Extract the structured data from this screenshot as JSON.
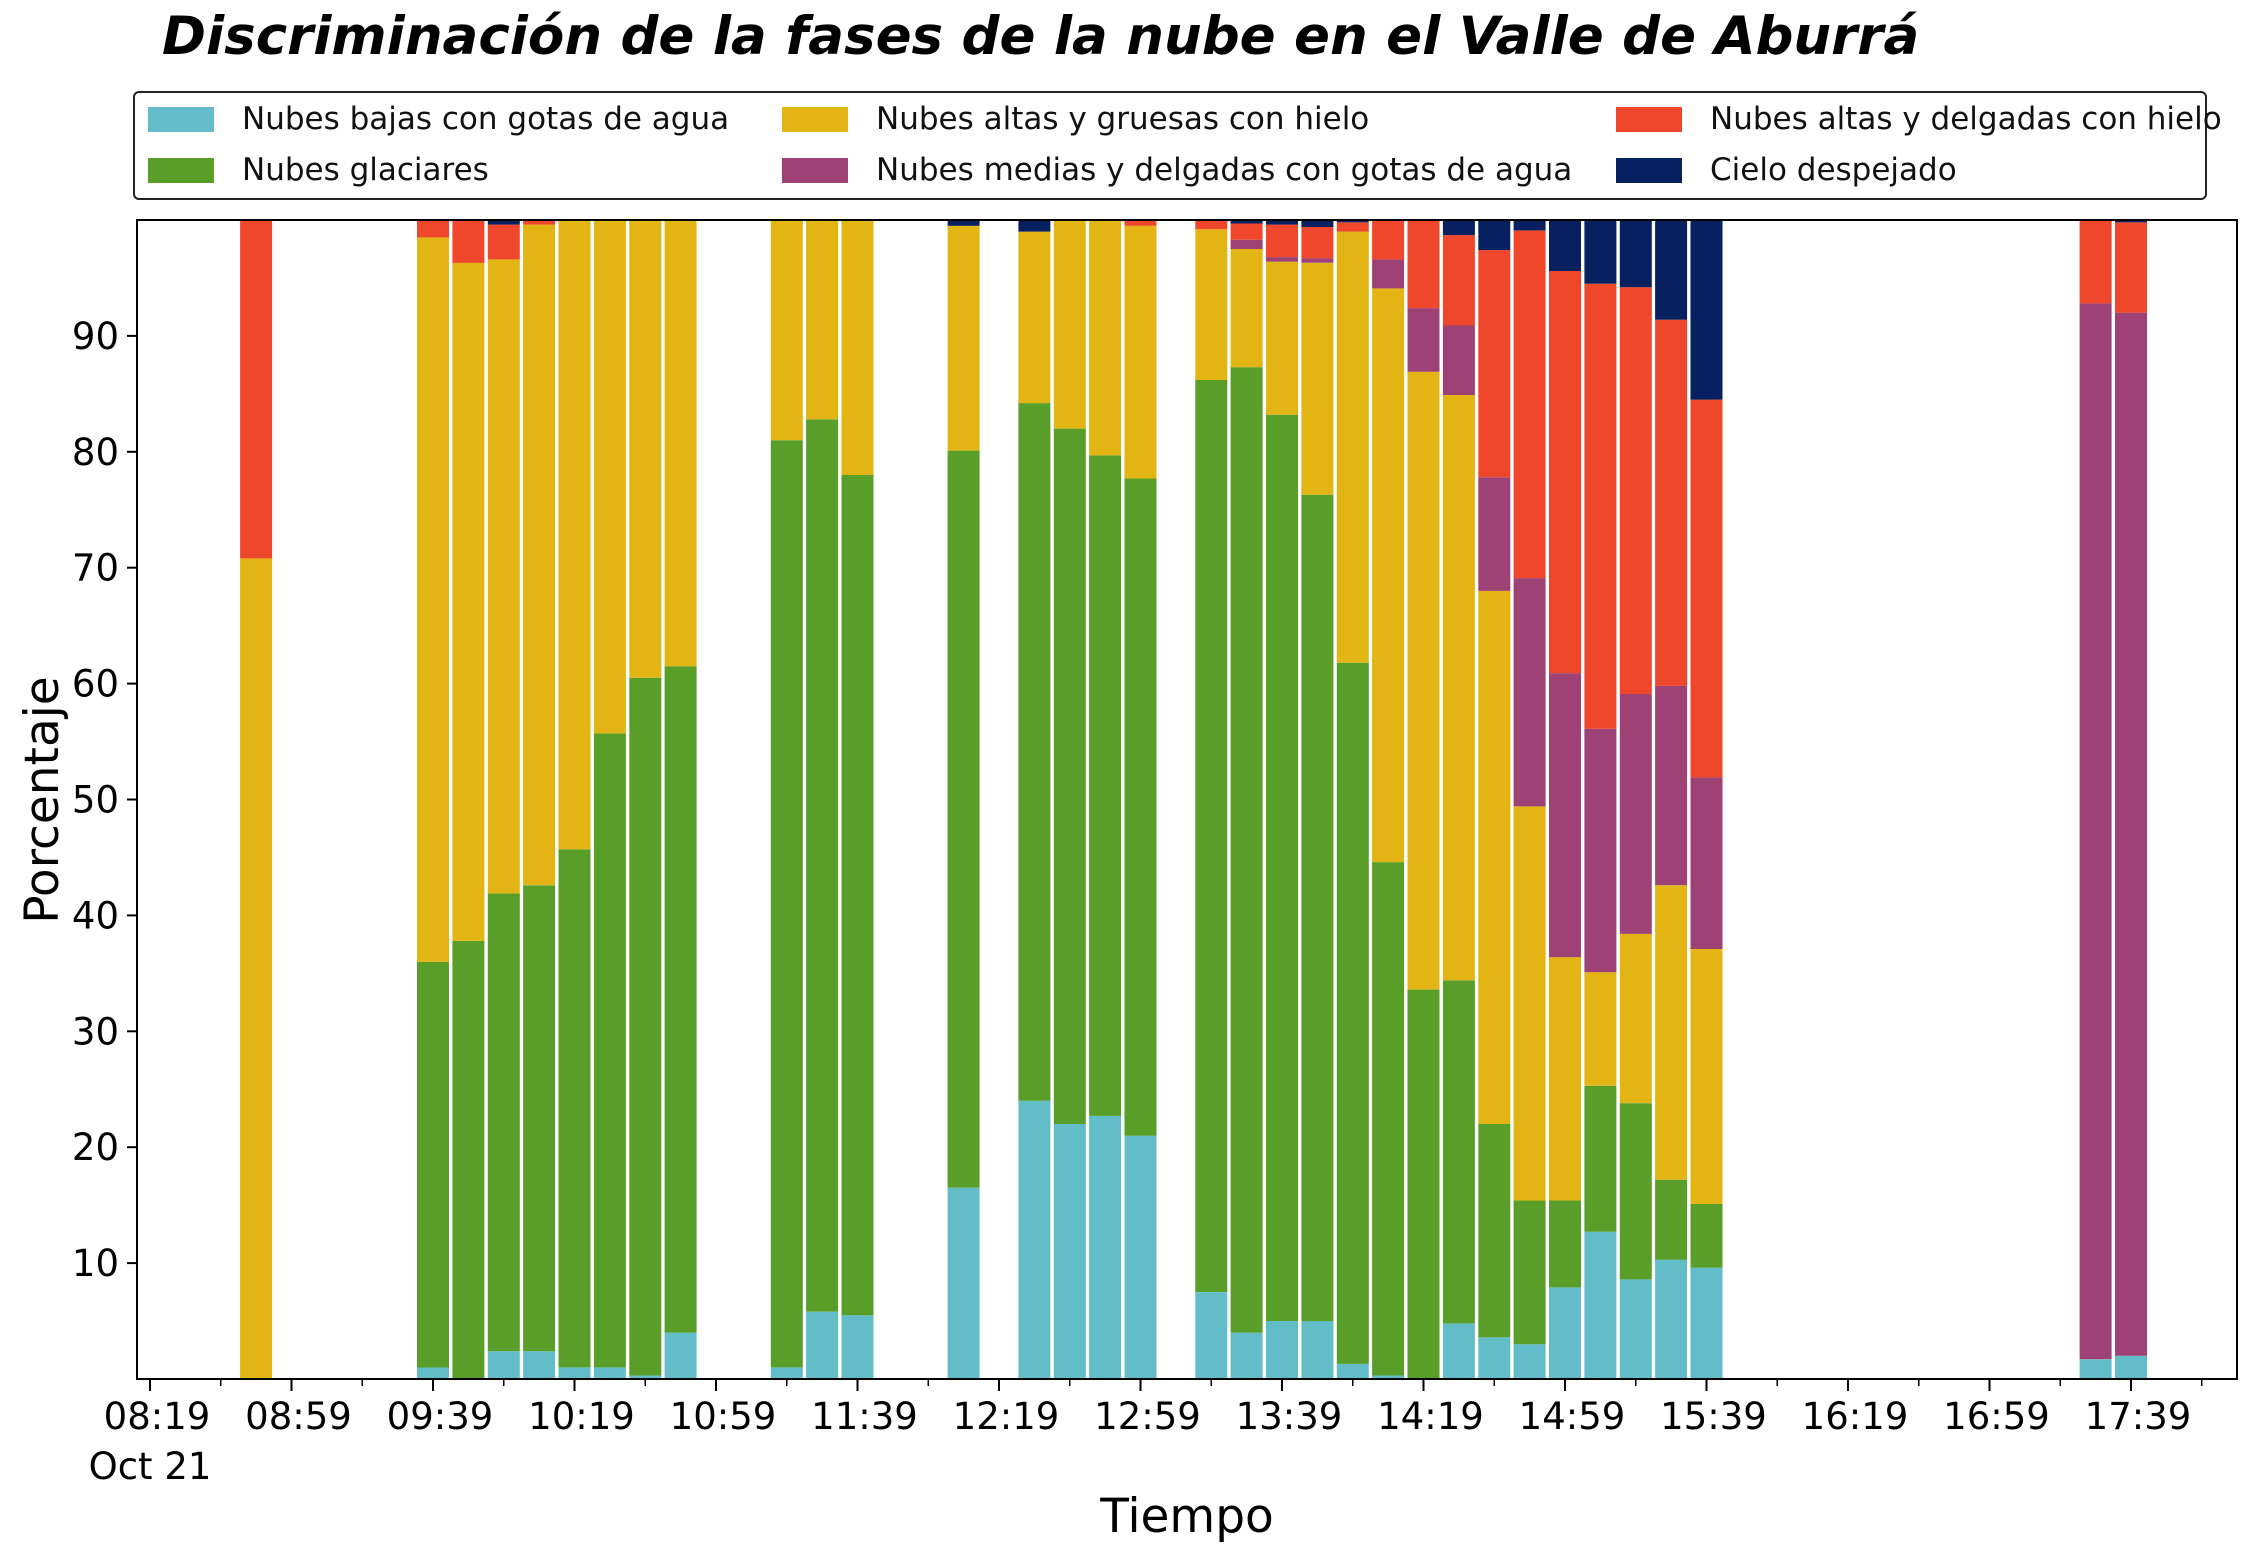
{
  "colors": {
    "low_water": "#63BDC8",
    "glacial": "#5A9E2A",
    "high_thick_ice": "#E2B514",
    "mid_thin_water": "#9E4276",
    "high_thin_ice": "#EE472B",
    "clear_sky": "#062060"
  },
  "chart_data": {
    "type": "bar",
    "stacked": true,
    "title": "Discriminación de la fases de la nube en el Valle de Aburrá",
    "xlabel": "Tiempo",
    "ylabel": "Porcentaje",
    "ylim": [
      0,
      100
    ],
    "grid": false,
    "legend_placement": "top",
    "x_ticks": [
      "08:19\nOct 21",
      "08:59",
      "09:39",
      "10:19",
      "10:59",
      "11:39",
      "12:19",
      "12:59",
      "13:39",
      "14:19",
      "14:59",
      "15:39",
      "16:19",
      "16:59",
      "17:39"
    ],
    "y_ticks": [
      10,
      20,
      30,
      40,
      50,
      60,
      70,
      80,
      90
    ],
    "series": [
      {
        "name": "Nubes bajas con gotas de agua",
        "color_key": "low_water"
      },
      {
        "name": "Nubes glaciares",
        "color_key": "glacial"
      },
      {
        "name": "Nubes altas y gruesas con hielo",
        "color_key": "high_thick_ice"
      },
      {
        "name": "Nubes medias y delgadas con gotas de agua",
        "color_key": "mid_thin_water"
      },
      {
        "name": "Nubes altas y delgadas con hielo",
        "color_key": "high_thin_ice"
      },
      {
        "name": "Cielo despejado",
        "color_key": "clear_sky"
      }
    ],
    "legend_order": [
      0,
      2,
      4,
      1,
      3,
      5
    ],
    "bars": [
      {
        "time": "08:49",
        "values": [
          0,
          0,
          70.8,
          0,
          29.2,
          0
        ]
      },
      {
        "time": "09:39",
        "values": [
          1,
          35,
          62.5,
          0,
          1.5,
          0
        ]
      },
      {
        "time": "09:49",
        "values": [
          0,
          37.8,
          58.5,
          0,
          3.7,
          0
        ]
      },
      {
        "time": "09:59",
        "values": [
          2.4,
          39.5,
          54.7,
          0,
          3,
          0.4
        ]
      },
      {
        "time": "10:09",
        "values": [
          2.4,
          40.2,
          57,
          0,
          0.4,
          0
        ]
      },
      {
        "time": "10:19",
        "values": [
          1,
          44.7,
          54.3,
          0,
          0,
          0
        ]
      },
      {
        "time": "10:29",
        "values": [
          1,
          54.7,
          44.3,
          0,
          0,
          0
        ]
      },
      {
        "time": "10:39",
        "values": [
          0.3,
          60.2,
          39.5,
          0,
          0,
          0
        ]
      },
      {
        "time": "10:49",
        "values": [
          4,
          57.5,
          38.5,
          0,
          0,
          0
        ]
      },
      {
        "time": "11:19",
        "values": [
          1,
          80,
          19,
          0,
          0,
          0
        ]
      },
      {
        "time": "11:29",
        "values": [
          5.8,
          77,
          17.2,
          0,
          0,
          0
        ]
      },
      {
        "time": "11:39",
        "values": [
          5.5,
          72.5,
          22,
          0,
          0,
          0
        ]
      },
      {
        "time": "12:09",
        "values": [
          16.5,
          63.6,
          19.4,
          0,
          0,
          0.5
        ]
      },
      {
        "time": "12:29",
        "values": [
          24,
          60.2,
          14.8,
          0,
          0,
          1
        ]
      },
      {
        "time": "12:39",
        "values": [
          22,
          60,
          18,
          0,
          0,
          0
        ]
      },
      {
        "time": "12:49",
        "values": [
          22.7,
          57,
          20.3,
          0,
          0,
          0
        ]
      },
      {
        "time": "12:59",
        "values": [
          21,
          56.7,
          21.8,
          0,
          0.5,
          0
        ]
      },
      {
        "time": "13:19",
        "values": [
          7.5,
          78.7,
          13,
          0,
          0.8,
          0
        ]
      },
      {
        "time": "13:29",
        "values": [
          4,
          83.3,
          10.2,
          0.8,
          1.4,
          0.3
        ]
      },
      {
        "time": "13:39",
        "values": [
          5,
          78.2,
          13.2,
          0.4,
          2.8,
          0.4
        ]
      },
      {
        "time": "13:49",
        "values": [
          5,
          71.3,
          20,
          0.4,
          2.7,
          0.6
        ]
      },
      {
        "time": "13:59",
        "values": [
          1.3,
          60.5,
          37.2,
          0,
          0.8,
          0.2
        ]
      },
      {
        "time": "14:09",
        "values": [
          0.3,
          44.3,
          49.5,
          2.5,
          3.4,
          0
        ]
      },
      {
        "time": "14:19",
        "values": [
          0,
          33.6,
          53.3,
          5.5,
          7.6,
          0
        ]
      },
      {
        "time": "14:29",
        "values": [
          4.8,
          29.6,
          50.5,
          6,
          7.8,
          1.3
        ]
      },
      {
        "time": "14:39",
        "values": [
          3.6,
          18.4,
          46,
          9.8,
          19.6,
          2.6
        ]
      },
      {
        "time": "14:49",
        "values": [
          3,
          12.4,
          34,
          19.7,
          30,
          0.9
        ]
      },
      {
        "time": "14:59",
        "values": [
          7.9,
          7.5,
          21,
          24.5,
          34.7,
          4.4
        ]
      },
      {
        "time": "15:09",
        "values": [
          12.7,
          12.6,
          9.8,
          21,
          38.4,
          5.5
        ]
      },
      {
        "time": "15:19",
        "values": [
          8.6,
          15.2,
          14.6,
          20.7,
          35.1,
          5.8
        ]
      },
      {
        "time": "15:29",
        "values": [
          10.3,
          6.9,
          25.4,
          17.2,
          31.6,
          8.6
        ]
      },
      {
        "time": "15:39",
        "values": [
          9.6,
          5.5,
          22,
          14.8,
          32.6,
          15.5
        ]
      },
      {
        "time": "17:29",
        "values": [
          1.7,
          0,
          0,
          91.1,
          7.2,
          0
        ]
      },
      {
        "time": "17:39",
        "values": [
          2,
          0,
          0,
          90,
          7.8,
          0.2
        ]
      }
    ]
  }
}
